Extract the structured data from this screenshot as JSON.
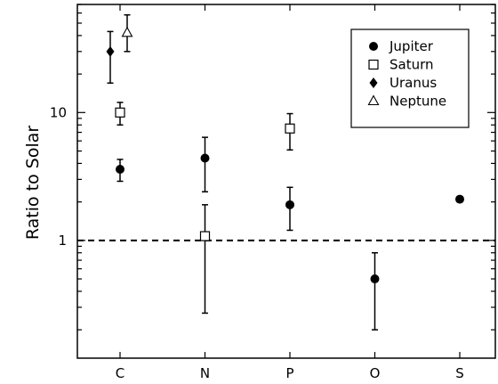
{
  "chart_data": {
    "type": "scatter",
    "title": "",
    "xlabel": "",
    "ylabel": "Ratio to Solar",
    "y_scale": "log",
    "ylim": [
      0.12,
      70
    ],
    "categories": [
      "C",
      "N",
      "P",
      "O",
      "S"
    ],
    "y_tick_labels": [
      "1",
      "10"
    ],
    "reference_line": {
      "y": 1,
      "style": "dashed"
    },
    "legend_position": "top-right",
    "series": [
      {
        "name": "Jupiter",
        "marker": "filled-circle",
        "points": [
          {
            "category": "C",
            "y": 3.6,
            "y_low": 2.9,
            "y_high": 4.3
          },
          {
            "category": "N",
            "y": 4.4,
            "y_low": 2.4,
            "y_high": 6.4
          },
          {
            "category": "P",
            "y": 1.9,
            "y_low": 1.2,
            "y_high": 2.6
          },
          {
            "category": "O",
            "y": 0.5,
            "y_low": 0.2,
            "y_high": 0.8
          },
          {
            "category": "S",
            "y": 2.1,
            "y_low": 2.0,
            "y_high": 2.2
          }
        ]
      },
      {
        "name": "Saturn",
        "marker": "open-square",
        "points": [
          {
            "category": "C",
            "y": 10,
            "y_low": 8.0,
            "y_high": 12.0
          },
          {
            "category": "N",
            "y": 1.08,
            "y_low": 0.27,
            "y_high": 1.9
          },
          {
            "category": "P",
            "y": 7.5,
            "y_low": 5.1,
            "y_high": 9.8
          }
        ]
      },
      {
        "name": "Uranus",
        "marker": "filled-diamond",
        "points": [
          {
            "category": "C",
            "y": 30,
            "y_low": 17,
            "y_high": 43
          }
        ]
      },
      {
        "name": "Neptune",
        "marker": "open-triangle",
        "points": [
          {
            "category": "C",
            "y": 42,
            "y_low": 30,
            "y_high": 58
          }
        ]
      }
    ]
  }
}
